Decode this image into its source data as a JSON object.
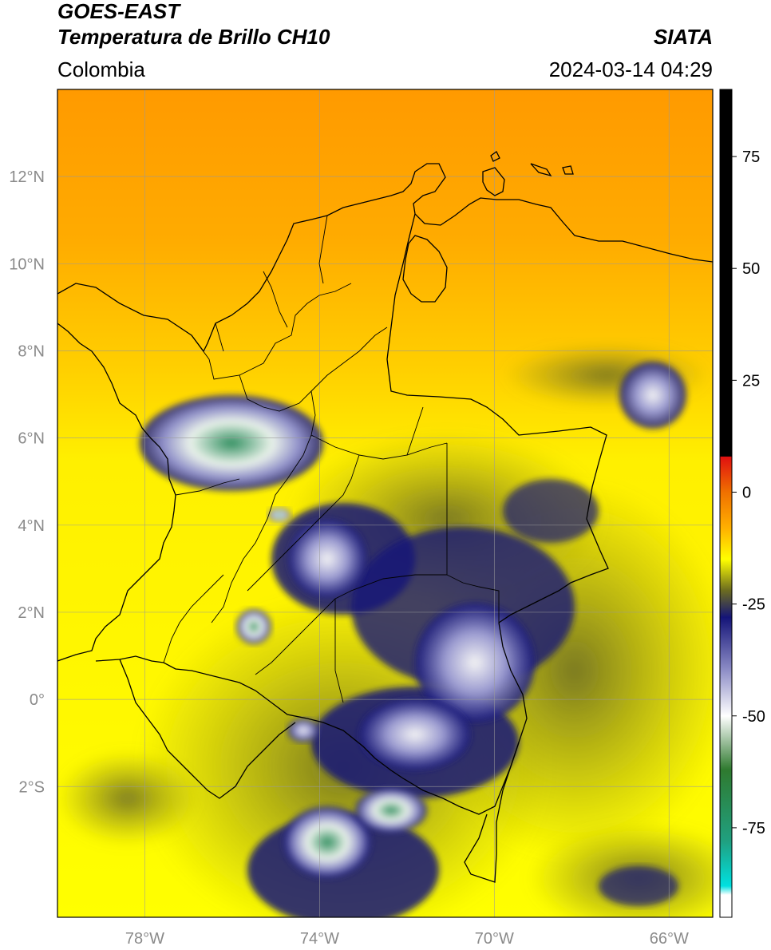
{
  "header": {
    "title_line1": "GOES-EAST",
    "title_line2": "Temperatura de Brillo CH10",
    "organization": "SIATA",
    "region": "Colombia",
    "timestamp": "2024-03-14 04:29"
  },
  "map": {
    "lon_range": [
      -80,
      -65
    ],
    "lat_range": [
      -5,
      14
    ],
    "lat_ticks": [
      {
        "v": 12,
        "label": "12°N"
      },
      {
        "v": 10,
        "label": "10°N"
      },
      {
        "v": 8,
        "label": "8°N"
      },
      {
        "v": 6,
        "label": "6°N"
      },
      {
        "v": 4,
        "label": "4°N"
      },
      {
        "v": 2,
        "label": "2°N"
      },
      {
        "v": 0,
        "label": "0°"
      },
      {
        "v": -2,
        "label": "2°S"
      }
    ],
    "lon_ticks": [
      {
        "v": -78,
        "label": "78°W"
      },
      {
        "v": -74,
        "label": "74°W"
      },
      {
        "v": -70,
        "label": "70°W"
      },
      {
        "v": -66,
        "label": "66°W"
      }
    ],
    "grid": true
  },
  "colorbar": {
    "range": [
      -95,
      90
    ],
    "ticks": [
      {
        "v": 75,
        "label": "75"
      },
      {
        "v": 50,
        "label": "50"
      },
      {
        "v": 25,
        "label": "25"
      },
      {
        "v": 0,
        "label": "0"
      },
      {
        "v": -25,
        "label": "-25"
      },
      {
        "v": -50,
        "label": "-50"
      },
      {
        "v": -75,
        "label": "-75"
      }
    ],
    "stops": [
      {
        "v": 90,
        "color": "#000000"
      },
      {
        "v": 8,
        "color": "#000000"
      },
      {
        "v": 7.9,
        "color": "#e01010"
      },
      {
        "v": 0,
        "color": "#f07000"
      },
      {
        "v": -8,
        "color": "#ffb000"
      },
      {
        "v": -15,
        "color": "#ffff00"
      },
      {
        "v": -22,
        "color": "#6b6b20"
      },
      {
        "v": -28,
        "color": "#141478"
      },
      {
        "v": -40,
        "color": "#9090c8"
      },
      {
        "v": -50,
        "color": "#ffffff"
      },
      {
        "v": -62,
        "color": "#2f7a2f"
      },
      {
        "v": -78,
        "color": "#20a080"
      },
      {
        "v": -88,
        "color": "#00e0e0"
      },
      {
        "v": -90,
        "color": "#ffffff"
      },
      {
        "v": -95,
        "color": "#ffffff"
      }
    ]
  }
}
